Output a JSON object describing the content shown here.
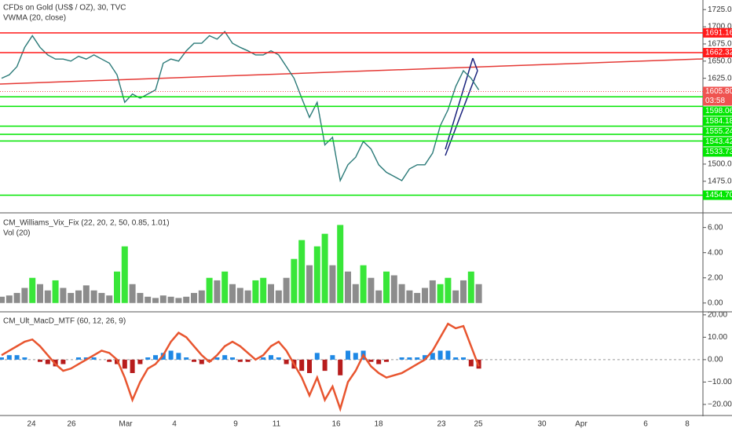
{
  "chart_data": [
    {
      "type": "line",
      "title": "CFDs on Gold (US$ / OZ), 30, TVC",
      "subtitle": "VWMA (20, close)",
      "series": [
        {
          "name": "Close",
          "color": "#2b7a78",
          "values": [
            1625,
            1630,
            1642,
            1670,
            1687,
            1670,
            1659,
            1653,
            1653,
            1650,
            1657,
            1653,
            1659,
            1653,
            1647,
            1630,
            1590,
            1602,
            1596,
            1602,
            1608,
            1647,
            1653,
            1650,
            1665,
            1676,
            1676,
            1687,
            1682,
            1693,
            1676,
            1670,
            1665,
            1659,
            1659,
            1665,
            1659,
            1642,
            1625,
            1596,
            1568,
            1590,
            1528,
            1539,
            1476,
            1499,
            1510,
            1533,
            1522,
            1499,
            1488,
            1482,
            1476,
            1493,
            1499,
            1499,
            1516,
            1556,
            1579,
            1613,
            1636,
            1625,
            1608
          ]
        }
      ],
      "ylim": [
        1429,
        1739
      ],
      "yticks": [
        {
          "value": 1475,
          "label": "1475.00"
        },
        {
          "value": 1500,
          "label": "1500.00"
        },
        {
          "value": 1625,
          "label": "1625.00"
        },
        {
          "value": 1650,
          "label": "1650.00"
        },
        {
          "value": 1675,
          "label": "1675.00"
        },
        {
          "value": 1700,
          "label": "1700.00"
        },
        {
          "value": 1725,
          "label": "1725.00"
        }
      ],
      "red_levels": [
        1691.16,
        1662.32
      ],
      "red_color": "#ff1a1a",
      "green_levels": [
        1598.06,
        1584.18,
        1555.24,
        1543.42,
        1533.73,
        {
          "value": 1454.7,
          "label": "1454.70"
        }
      ],
      "green_color": "#00e600",
      "last_price": {
        "value": 1605.8,
        "label": "1605.80"
      },
      "countdown": "03:58",
      "last_color": "#ef5350"
    },
    {
      "type": "bar",
      "title": "CM_Williams_Vix_Fix (22, 20, 2, 50, 0.85, 1.01)",
      "subtitle": "Vol (20)",
      "values": [
        0.5,
        0.6,
        0.8,
        1.2,
        2.0,
        1.5,
        1.0,
        1.8,
        1.2,
        0.8,
        1.0,
        1.4,
        1.0,
        0.8,
        0.6,
        2.5,
        4.5,
        1.5,
        0.8,
        0.5,
        0.4,
        0.6,
        0.5,
        0.4,
        0.5,
        0.8,
        1.0,
        2.0,
        1.8,
        2.5,
        1.5,
        1.2,
        1.0,
        1.8,
        2.0,
        1.5,
        1.0,
        2.0,
        3.5,
        5.0,
        3.0,
        4.5,
        5.5,
        3.0,
        6.2,
        2.5,
        1.5,
        3.0,
        2.0,
        1.0,
        2.5,
        2.2,
        1.5,
        1.0,
        0.8,
        1.2,
        1.8,
        1.5,
        2.0,
        1.0,
        1.8,
        2.5,
        1.5
      ],
      "colors": [
        "#8c8c8c",
        "#8c8c8c",
        "#8c8c8c",
        "#8c8c8c",
        "#39e639",
        "#8c8c8c",
        "#8c8c8c",
        "#39e639",
        "#8c8c8c",
        "#8c8c8c",
        "#8c8c8c",
        "#8c8c8c",
        "#8c8c8c",
        "#8c8c8c",
        "#8c8c8c",
        "#39e639",
        "#39e639",
        "#8c8c8c",
        "#8c8c8c",
        "#8c8c8c",
        "#8c8c8c",
        "#8c8c8c",
        "#8c8c8c",
        "#8c8c8c",
        "#8c8c8c",
        "#8c8c8c",
        "#8c8c8c",
        "#39e639",
        "#8c8c8c",
        "#39e639",
        "#8c8c8c",
        "#8c8c8c",
        "#8c8c8c",
        "#39e639",
        "#39e639",
        "#8c8c8c",
        "#8c8c8c",
        "#8c8c8c",
        "#39e639",
        "#39e639",
        "#8c8c8c",
        "#39e639",
        "#39e639",
        "#8c8c8c",
        "#39e639",
        "#8c8c8c",
        "#8c8c8c",
        "#39e639",
        "#8c8c8c",
        "#8c8c8c",
        "#39e639",
        "#8c8c8c",
        "#8c8c8c",
        "#8c8c8c",
        "#8c8c8c",
        "#8c8c8c",
        "#8c8c8c",
        "#39e639",
        "#39e639",
        "#8c8c8c",
        "#8c8c8c",
        "#39e639",
        "#8c8c8c"
      ],
      "ylim": [
        -0.7,
        7.1
      ],
      "yticks": [
        {
          "value": 0,
          "label": "0.00"
        },
        {
          "value": 2,
          "label": "2.00"
        },
        {
          "value": 4,
          "label": "4.00"
        },
        {
          "value": 6,
          "label": "6.00"
        }
      ]
    },
    {
      "type": "macd",
      "title": "CM_Ult_MacD_MTF (60, 12, 26, 9)",
      "series": [
        {
          "name": "MacD",
          "color": "#e8552f",
          "values": [
            2,
            4,
            6,
            8,
            9,
            6,
            2,
            -2,
            -5,
            -4,
            -2,
            0,
            2,
            4,
            3,
            0,
            -8,
            -18,
            -10,
            -4,
            -2,
            2,
            8,
            12,
            10,
            6,
            2,
            -1,
            2,
            6,
            8,
            6,
            3,
            0,
            2,
            6,
            8,
            4,
            -2,
            -8,
            -16,
            -8,
            -18,
            -12,
            -22,
            -10,
            -5,
            2,
            -3,
            -6,
            -8,
            -7,
            -6,
            -4,
            -2,
            0,
            4,
            10,
            16,
            14,
            15,
            6,
            -3
          ]
        },
        {
          "name": "Histogram",
          "values": [
            1,
            2,
            2,
            1,
            0,
            -1,
            -2,
            -3,
            -2,
            0,
            1,
            1,
            1,
            0,
            -1,
            -2,
            -4,
            -6,
            -2,
            1,
            2,
            3,
            4,
            3,
            1,
            -1,
            -2,
            -1,
            1,
            2,
            1,
            -1,
            -1,
            0,
            1,
            2,
            1,
            -2,
            -4,
            -5,
            -6,
            3,
            -5,
            2,
            -7,
            4,
            3,
            4,
            -1,
            -2,
            -1,
            0,
            1,
            1,
            1,
            2,
            3,
            4,
            4,
            1,
            1,
            -3,
            -4
          ]
        }
      ],
      "up_color": "#1e88e5",
      "down_color": "#b71c1c",
      "ylim": [
        -24.6,
        21
      ],
      "yticks": [
        {
          "value": -20,
          "label": "−20.00"
        },
        {
          "value": -10,
          "label": "−10.00"
        },
        {
          "value": 0,
          "label": "0.00"
        },
        {
          "value": 10,
          "label": "10.00"
        },
        {
          "value": 20,
          "label": "20.00"
        }
      ],
      "x_axis_labels": [
        "24",
        "26",
        "Mar",
        "4",
        "9",
        "11",
        "16",
        "18",
        "23",
        "25",
        "30",
        "Apr",
        "6",
        "8"
      ]
    }
  ]
}
